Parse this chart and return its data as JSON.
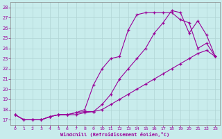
{
  "xlabel": "Windchill (Refroidissement éolien,°C)",
  "background_color": "#c8ecec",
  "line_color": "#990099",
  "grid_color": "#aacccc",
  "ylim": [
    16.5,
    28.5
  ],
  "xlim": [
    -0.5,
    23.5
  ],
  "yticks": [
    17,
    18,
    19,
    20,
    21,
    22,
    23,
    24,
    25,
    26,
    27,
    28
  ],
  "xticks": [
    0,
    1,
    2,
    3,
    4,
    5,
    6,
    7,
    8,
    9,
    10,
    11,
    12,
    13,
    14,
    15,
    16,
    17,
    18,
    19,
    20,
    21,
    22,
    23
  ],
  "line1_x": [
    0,
    1,
    2,
    3,
    4,
    5,
    6,
    7,
    8,
    9,
    10,
    11,
    12,
    13,
    14,
    15,
    16,
    17,
    18,
    19,
    20,
    21,
    22,
    23
  ],
  "line1_y": [
    17.5,
    17.0,
    17.0,
    17.0,
    17.3,
    17.5,
    17.5,
    17.5,
    17.7,
    17.8,
    18.0,
    18.5,
    19.0,
    19.5,
    20.0,
    20.5,
    21.0,
    21.5,
    22.0,
    22.5,
    23.0,
    23.5,
    23.8,
    23.2
  ],
  "line2_x": [
    0,
    1,
    2,
    3,
    4,
    5,
    6,
    7,
    8,
    9,
    10,
    11,
    12,
    13,
    14,
    15,
    16,
    17,
    18,
    19,
    20,
    21,
    22,
    23
  ],
  "line2_y": [
    17.5,
    17.0,
    17.0,
    17.0,
    17.3,
    17.5,
    17.5,
    17.7,
    18.0,
    20.4,
    22.0,
    23.0,
    23.2,
    25.8,
    27.3,
    27.5,
    27.5,
    27.5,
    27.5,
    26.8,
    26.5,
    24.0,
    24.5,
    23.2
  ],
  "line3_x": [
    0,
    1,
    2,
    3,
    4,
    5,
    6,
    7,
    8,
    9,
    10,
    11,
    12,
    13,
    14,
    15,
    16,
    17,
    18,
    19,
    20,
    21,
    22,
    23
  ],
  "line3_y": [
    17.5,
    17.0,
    17.0,
    17.0,
    17.3,
    17.5,
    17.5,
    17.7,
    17.8,
    17.8,
    18.5,
    19.5,
    21.0,
    22.0,
    23.0,
    24.0,
    25.5,
    26.5,
    27.7,
    27.5,
    25.5,
    26.7,
    25.3,
    23.2
  ]
}
